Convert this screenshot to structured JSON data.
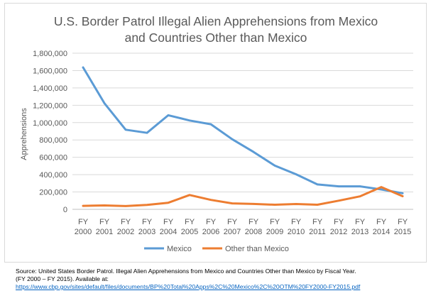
{
  "chart_data": {
    "type": "line",
    "title_line1": "U.S. Border Patrol Illegal Alien Apprehensions from Mexico",
    "title_line2": "and Countries Other than Mexico",
    "xlabel": "",
    "ylabel": "Apprehensions",
    "ylim": [
      0,
      1800000
    ],
    "yticks": [
      "0",
      "200,000",
      "400,000",
      "600,000",
      "800,000",
      "1,000,000",
      "1,200,000",
      "1,400,000",
      "1,600,000",
      "1,800,000"
    ],
    "categories": [
      [
        "FY",
        "2000"
      ],
      [
        "FY",
        "2001"
      ],
      [
        "FY",
        "2002"
      ],
      [
        "FY",
        "2003"
      ],
      [
        "FY",
        "2004"
      ],
      [
        "FY",
        "2005"
      ],
      [
        "FY",
        "2006"
      ],
      [
        "FY",
        "2007"
      ],
      [
        "FY",
        "2008"
      ],
      [
        "FY",
        "2009"
      ],
      [
        "FY",
        "2010"
      ],
      [
        "FY",
        "2011"
      ],
      [
        "FY",
        "2012"
      ],
      [
        "FY",
        "2013"
      ],
      [
        "FY",
        "2014"
      ],
      [
        "FY",
        "2015"
      ]
    ],
    "series": [
      {
        "name": "Mexico",
        "color": "#5b9bd5",
        "values": [
          1636000,
          1224000,
          918000,
          882000,
          1085000,
          1024000,
          981000,
          808000,
          662000,
          504000,
          404000,
          287000,
          265000,
          265000,
          229000,
          186000
        ]
      },
      {
        "name": "Other than Mexico",
        "color": "#ed7d31",
        "values": [
          40000,
          45000,
          38000,
          51000,
          76000,
          165000,
          109000,
          69000,
          62000,
          53000,
          61000,
          53000,
          100000,
          150000,
          257000,
          151000
        ]
      }
    ],
    "grid": true,
    "legend": "bottom-center"
  },
  "source": {
    "line1": "Source: United States Border Patrol. Illegal Alien Apprehensions from Mexico and Countries Other than Mexico by Fiscal Year.",
    "line2": "(FY 2000 – FY 2015). Available at:",
    "link": "https://www.cbp.gov/sites/default/files/documents/BP%20Total%20Apps%2C%20Mexico%2C%20OTM%20FY2000-FY2015.pdf"
  }
}
